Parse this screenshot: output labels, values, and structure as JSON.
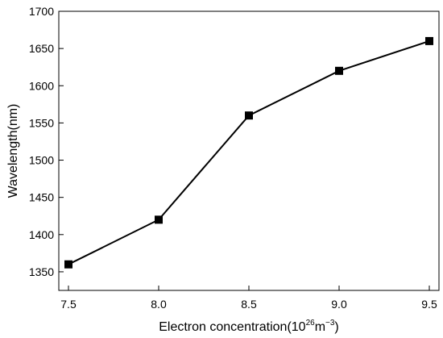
{
  "chart_data": {
    "type": "line",
    "title": "",
    "xlabel": {
      "main": "Electron concentration(10",
      "exp1": "26",
      "mid": "m",
      "exp2": "−3",
      "end": ")"
    },
    "ylabel": "Wavelength(nm)",
    "x": [
      7.5,
      8.0,
      8.5,
      9.0,
      9.5
    ],
    "series": [
      {
        "values": [
          1360,
          1420,
          1560,
          1620,
          1660
        ]
      }
    ],
    "xlim": [
      7.5,
      9.5
    ],
    "ylim": [
      1325,
      1700
    ],
    "xticks": [
      "7.5",
      "8.0",
      "8.5",
      "9.0",
      "9.5"
    ],
    "yticks": [
      "1350",
      "1400",
      "1450",
      "1500",
      "1550",
      "1600",
      "1650",
      "1700"
    ],
    "marker": "square",
    "line_color": "#000000",
    "grid": false,
    "legend": "none"
  }
}
